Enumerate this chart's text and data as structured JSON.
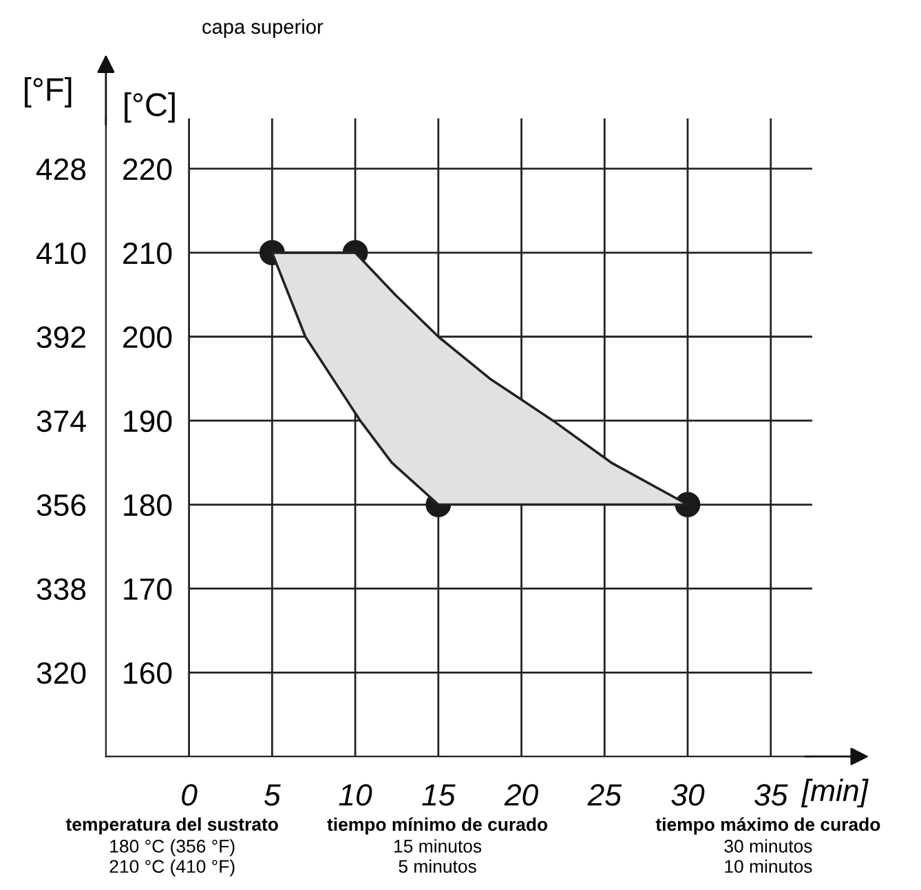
{
  "chart_data": {
    "type": "area",
    "title": "capa superior",
    "xlabel": "[min]",
    "ylabel": "[°C]",
    "y2label": "[°F]",
    "xlim": [
      -5,
      37.5
    ],
    "xticks": [
      0,
      5,
      10,
      15,
      20,
      25,
      30,
      35
    ],
    "ylim": [
      150,
      226
    ],
    "yticks": [
      160,
      170,
      180,
      190,
      200,
      210,
      220
    ],
    "y2lim": [
      302,
      438.8
    ],
    "y2ticks": [
      320,
      338,
      356,
      374,
      392,
      410,
      428
    ],
    "grid": true,
    "series": [
      {
        "color": "#e0e1e0",
        "x": [
          5,
          10,
          12.4,
          15,
          18.1,
          21.9,
          25.4,
          30,
          15,
          12.2,
          10.3,
          7,
          5
        ],
        "values": [
          210,
          210,
          205,
          200,
          195,
          190,
          185,
          180,
          180,
          185,
          190,
          200,
          210
        ]
      },
      {
        "type": "scatter",
        "color": "#1a1a1a",
        "marker": "circle",
        "x": [
          5,
          10,
          15,
          30
        ],
        "values": [
          210,
          210,
          180,
          180
        ]
      }
    ],
    "annotations": [
      "temperatura del sustrato",
      "180 °C (356 °F)\n210 °C (410 °F)",
      "tiempo mínimo de curado",
      "15 minutos\n5 minutos",
      "tiempo máximo de curado",
      "30 minutos\n10 minutos"
    ]
  }
}
